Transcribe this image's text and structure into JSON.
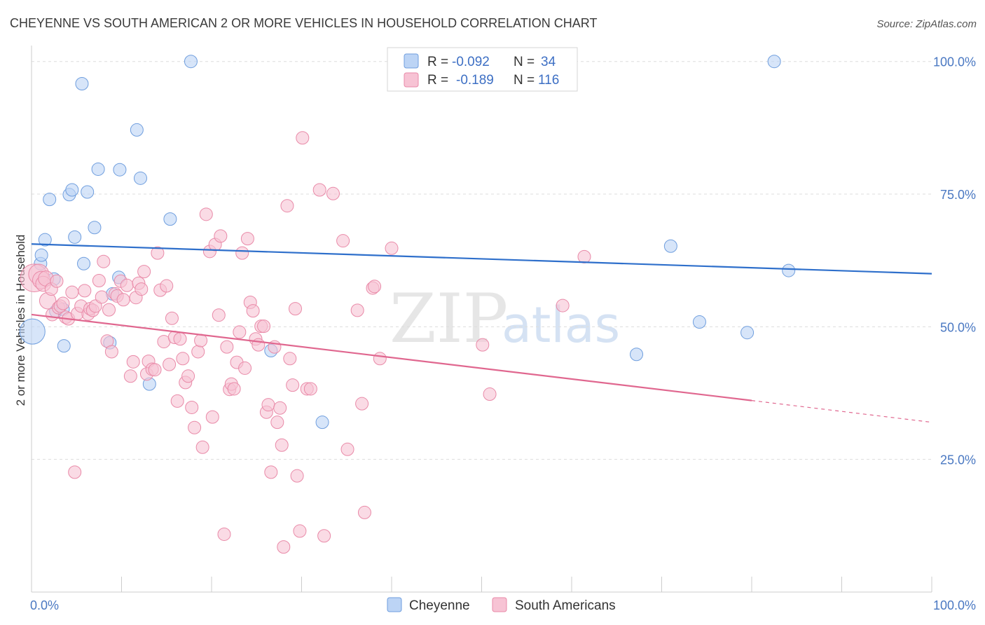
{
  "header": {
    "title": "CHEYENNE VS SOUTH AMERICAN 2 OR MORE VEHICLES IN HOUSEHOLD CORRELATION CHART",
    "source": "Source: ZipAtlas.com"
  },
  "watermark": {
    "zip": "ZIP",
    "atlas": "atlas"
  },
  "legend": {
    "rows": [
      {
        "r_label": "R =",
        "r_value": "-0.092",
        "n_label": "N =",
        "n_value": "34"
      },
      {
        "r_label": "R =",
        "r_value": "-0.189",
        "n_label": "N =",
        "n_value": "116"
      }
    ]
  },
  "bottom_legend": {
    "items": [
      "Cheyenne",
      "South Americans"
    ]
  },
  "colors": {
    "cheyenne_fill": "#bcd4f5",
    "cheyenne_stroke": "#6f9ede",
    "cheyenne_line": "#2e6fcb",
    "south_fill": "#f7c3d4",
    "south_stroke": "#e98aa8",
    "south_line": "#e0678f",
    "grid": "#dddddd",
    "axis": "#cccccc",
    "tick_text": "#4a78c2"
  },
  "chart_data": {
    "type": "scatter",
    "title": "CHEYENNE VS SOUTH AMERICAN 2 OR MORE VEHICLES IN HOUSEHOLD CORRELATION CHART",
    "xlabel": "",
    "ylabel": "2 or more Vehicles in Household",
    "xlim": [
      0,
      100
    ],
    "ylim": [
      0,
      103
    ],
    "x_tick_labels": [
      "0.0%",
      "100.0%"
    ],
    "y_ticks": [
      25,
      50,
      75,
      100
    ],
    "y_tick_labels": [
      "25.0%",
      "50.0%",
      "75.0%",
      "100.0%"
    ],
    "grid": true,
    "legend_position": "top-center",
    "series": [
      {
        "name": "Cheyenne",
        "r": -0.092,
        "n": 34,
        "trend": {
          "x0": 0,
          "y0": 65.6,
          "x1": 100,
          "y1": 60.0
        },
        "points": [
          [
            0.1,
            49.1,
            2.0
          ],
          [
            1.0,
            61.9,
            1.0
          ],
          [
            1.1,
            63.5,
            1.0
          ],
          [
            1.5,
            66.4,
            1.0
          ],
          [
            2.0,
            74.0,
            1.0
          ],
          [
            2.5,
            59.0,
            1.0
          ],
          [
            2.7,
            52.9,
            1.0
          ],
          [
            3.5,
            53.3,
            1.0
          ],
          [
            3.6,
            46.4,
            1.0
          ],
          [
            4.2,
            74.9,
            1.0
          ],
          [
            4.5,
            75.8,
            1.0
          ],
          [
            4.8,
            66.9,
            1.0
          ],
          [
            5.6,
            95.8,
            1.0
          ],
          [
            5.8,
            61.9,
            1.0
          ],
          [
            6.2,
            75.4,
            1.0
          ],
          [
            7.0,
            68.7,
            1.0
          ],
          [
            7.4,
            79.7,
            1.0
          ],
          [
            8.7,
            47.0,
            1.0
          ],
          [
            9.0,
            56.2,
            1.0
          ],
          [
            9.7,
            59.3,
            1.0
          ],
          [
            9.8,
            79.6,
            1.0
          ],
          [
            11.7,
            87.1,
            1.0
          ],
          [
            12.1,
            78.0,
            1.0
          ],
          [
            13.1,
            39.2,
            1.0
          ],
          [
            15.4,
            70.3,
            1.0
          ],
          [
            17.7,
            100.0,
            1.0
          ],
          [
            26.6,
            45.5,
            1.0
          ],
          [
            32.3,
            32.0,
            1.0
          ],
          [
            67.2,
            44.8,
            1.0
          ],
          [
            71.0,
            65.2,
            1.0
          ],
          [
            74.2,
            50.9,
            1.0
          ],
          [
            79.5,
            48.9,
            1.0
          ],
          [
            82.5,
            100.0,
            1.0
          ],
          [
            84.1,
            60.6,
            1.0
          ]
        ]
      },
      {
        "name": "South Americans",
        "r": -0.189,
        "n": 116,
        "trend": {
          "x0": 0,
          "y0": 52.3,
          "x1": 80,
          "y1": 36.1
        },
        "trend_dashed": {
          "x0": 80,
          "y0": 36.1,
          "x1": 100,
          "y1": 32.0
        },
        "points": [
          [
            0.3,
            59.2,
            2.2
          ],
          [
            0.8,
            59.9,
            1.6
          ],
          [
            1.1,
            58.8,
            1.4
          ],
          [
            1.3,
            58.1,
            1.2
          ],
          [
            1.6,
            59.1,
            1.2
          ],
          [
            1.8,
            54.9,
            1.3
          ],
          [
            2.2,
            57.1,
            1.0
          ],
          [
            2.3,
            52.3,
            1.0
          ],
          [
            2.8,
            58.6,
            1.0
          ],
          [
            3.0,
            53.6,
            1.0
          ],
          [
            3.2,
            53.9,
            1.0
          ],
          [
            3.5,
            54.4,
            1.0
          ],
          [
            3.8,
            51.8,
            1.0
          ],
          [
            4.1,
            51.5,
            1.0
          ],
          [
            4.5,
            56.5,
            1.0
          ],
          [
            4.8,
            22.6,
            1.0
          ],
          [
            5.1,
            52.5,
            1.0
          ],
          [
            5.5,
            53.9,
            1.0
          ],
          [
            5.9,
            56.8,
            1.0
          ],
          [
            6.3,
            52.4,
            1.0
          ],
          [
            6.5,
            53.4,
            1.0
          ],
          [
            6.8,
            53.1,
            1.0
          ],
          [
            7.1,
            53.9,
            1.0
          ],
          [
            7.5,
            58.7,
            1.0
          ],
          [
            7.8,
            55.6,
            1.0
          ],
          [
            8.0,
            62.3,
            1.0
          ],
          [
            8.4,
            47.3,
            1.0
          ],
          [
            8.6,
            53.2,
            1.0
          ],
          [
            8.9,
            45.3,
            1.0
          ],
          [
            9.3,
            56.2,
            1.0
          ],
          [
            9.5,
            55.8,
            1.0
          ],
          [
            9.9,
            58.6,
            1.0
          ],
          [
            10.2,
            55.1,
            1.0
          ],
          [
            10.6,
            57.8,
            1.0
          ],
          [
            11.0,
            40.7,
            1.0
          ],
          [
            11.3,
            43.4,
            1.0
          ],
          [
            11.6,
            55.5,
            1.0
          ],
          [
            11.9,
            58.2,
            1.0
          ],
          [
            12.2,
            57.1,
            1.0
          ],
          [
            12.5,
            60.4,
            1.0
          ],
          [
            12.8,
            41.1,
            1.0
          ],
          [
            13.0,
            43.5,
            1.0
          ],
          [
            13.4,
            42.0,
            1.0
          ],
          [
            13.7,
            41.9,
            1.0
          ],
          [
            14.0,
            63.9,
            1.0
          ],
          [
            14.3,
            56.9,
            1.0
          ],
          [
            14.7,
            47.2,
            1.0
          ],
          [
            15.0,
            57.7,
            1.0
          ],
          [
            15.3,
            42.9,
            1.0
          ],
          [
            15.6,
            51.6,
            1.0
          ],
          [
            15.9,
            48.0,
            1.0
          ],
          [
            16.2,
            36.0,
            1.0
          ],
          [
            16.5,
            47.7,
            1.0
          ],
          [
            16.8,
            44.0,
            1.0
          ],
          [
            17.1,
            39.5,
            1.0
          ],
          [
            17.4,
            40.7,
            1.0
          ],
          [
            17.8,
            34.8,
            1.0
          ],
          [
            18.1,
            31.0,
            1.0
          ],
          [
            18.5,
            45.3,
            1.0
          ],
          [
            18.8,
            47.4,
            1.0
          ],
          [
            19.0,
            27.3,
            1.0
          ],
          [
            19.4,
            71.2,
            1.0
          ],
          [
            19.8,
            64.2,
            1.0
          ],
          [
            20.1,
            33.0,
            1.0
          ],
          [
            20.4,
            65.5,
            1.0
          ],
          [
            20.8,
            52.2,
            1.0
          ],
          [
            21.0,
            67.1,
            1.0
          ],
          [
            21.4,
            10.9,
            1.0
          ],
          [
            21.7,
            46.2,
            1.0
          ],
          [
            22.0,
            38.2,
            1.0
          ],
          [
            22.2,
            39.2,
            1.0
          ],
          [
            22.5,
            38.3,
            1.0
          ],
          [
            22.8,
            43.3,
            1.0
          ],
          [
            23.1,
            49.0,
            1.0
          ],
          [
            23.4,
            63.9,
            1.0
          ],
          [
            23.7,
            42.2,
            1.0
          ],
          [
            24.0,
            66.6,
            1.0
          ],
          [
            24.3,
            54.6,
            1.0
          ],
          [
            24.6,
            53.0,
            1.0
          ],
          [
            24.9,
            47.7,
            1.0
          ],
          [
            25.2,
            46.6,
            1.0
          ],
          [
            25.5,
            50.1,
            1.0
          ],
          [
            25.8,
            50.1,
            1.0
          ],
          [
            26.1,
            33.9,
            1.0
          ],
          [
            26.3,
            35.3,
            1.0
          ],
          [
            26.6,
            22.6,
            1.0
          ],
          [
            27.0,
            46.2,
            1.0
          ],
          [
            27.3,
            32.0,
            1.0
          ],
          [
            27.6,
            34.7,
            1.0
          ],
          [
            27.8,
            27.7,
            1.0
          ],
          [
            28.0,
            8.5,
            1.0
          ],
          [
            28.4,
            72.8,
            1.0
          ],
          [
            28.7,
            44.0,
            1.0
          ],
          [
            29.0,
            39.0,
            1.0
          ],
          [
            29.3,
            53.4,
            1.0
          ],
          [
            29.5,
            21.9,
            1.0
          ],
          [
            29.8,
            11.5,
            1.0
          ],
          [
            30.1,
            85.6,
            1.0
          ],
          [
            30.6,
            38.3,
            1.0
          ],
          [
            31.0,
            38.3,
            1.0
          ],
          [
            32.0,
            75.8,
            1.0
          ],
          [
            32.5,
            10.6,
            1.0
          ],
          [
            33.5,
            75.1,
            1.0
          ],
          [
            34.6,
            66.2,
            1.0
          ],
          [
            35.1,
            26.9,
            1.0
          ],
          [
            36.2,
            53.1,
            1.0
          ],
          [
            36.7,
            35.5,
            1.0
          ],
          [
            37.0,
            15.0,
            1.0
          ],
          [
            37.9,
            57.3,
            1.0
          ],
          [
            38.1,
            57.6,
            1.0
          ],
          [
            38.7,
            44.0,
            1.0
          ],
          [
            40.0,
            64.8,
            1.0
          ],
          [
            50.1,
            46.6,
            1.0
          ],
          [
            50.9,
            37.3,
            1.0
          ],
          [
            59.0,
            54.0,
            1.0
          ],
          [
            61.4,
            63.2,
            1.0
          ]
        ]
      }
    ]
  }
}
